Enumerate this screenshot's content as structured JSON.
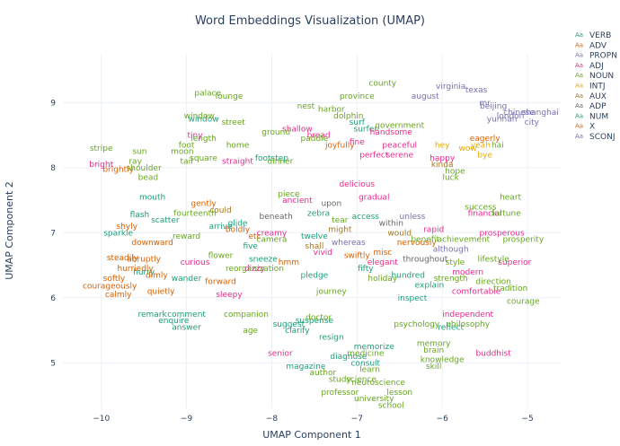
{
  "chart_data": {
    "type": "scatter",
    "title": "Word Embeddings Visualization (UMAP)",
    "xlabel": "UMAP Component 1",
    "ylabel": "UMAP Component 2",
    "xlim": [
      -10.45,
      -4.6
    ],
    "ylim": [
      4.3,
      9.75
    ],
    "xticks": [
      -10,
      -9,
      -8,
      -7,
      -6,
      -5
    ],
    "yticks": [
      5,
      6,
      7,
      8,
      9
    ],
    "grid": true,
    "legend_position": "right",
    "legend_marker": "Aa",
    "series": [
      {
        "name": "VERB",
        "color": "#1b9e77",
        "points": [
          {
            "text": "mouth",
            "x": -9.4,
            "y": 7.55
          },
          {
            "text": "flash",
            "x": -9.55,
            "y": 7.28
          },
          {
            "text": "enquire",
            "x": -9.15,
            "y": 5.65
          },
          {
            "text": "answer",
            "x": -9.0,
            "y": 5.55
          },
          {
            "text": "suspense",
            "x": -7.5,
            "y": 5.65
          },
          {
            "text": "suggest",
            "x": -7.8,
            "y": 5.6
          },
          {
            "text": "zebra",
            "x": -7.45,
            "y": 7.3
          },
          {
            "text": "access",
            "x": -6.9,
            "y": 7.25
          },
          {
            "text": "surf",
            "x": -7.0,
            "y": 8.7
          },
          {
            "text": "surfer",
            "x": -6.9,
            "y": 8.6
          },
          {
            "text": "window",
            "x": -8.8,
            "y": 8.75
          },
          {
            "text": "footstep",
            "x": -8.0,
            "y": 8.15
          },
          {
            "text": "diagnose",
            "x": -7.1,
            "y": 5.1
          },
          {
            "text": "magazine",
            "x": -7.6,
            "y": 4.95
          },
          {
            "text": "resign",
            "x": -7.3,
            "y": 5.4
          },
          {
            "text": "remark",
            "x": -9.4,
            "y": 5.75
          },
          {
            "text": "comment",
            "x": -9.0,
            "y": 5.75
          },
          {
            "text": "sparkle",
            "x": -9.8,
            "y": 7.0
          },
          {
            "text": "clarify",
            "x": -7.7,
            "y": 5.5
          },
          {
            "text": "consult",
            "x": -6.9,
            "y": 5.0
          },
          {
            "text": "wander",
            "x": -9.0,
            "y": 6.3
          },
          {
            "text": "hurry",
            "x": -9.5,
            "y": 6.4
          },
          {
            "text": "scatter",
            "x": -9.25,
            "y": 7.2
          },
          {
            "text": "glide",
            "x": -8.4,
            "y": 7.15
          },
          {
            "text": "pledge",
            "x": -7.5,
            "y": 6.35
          },
          {
            "text": "inspect",
            "x": -6.35,
            "y": 6.0
          },
          {
            "text": "reflect",
            "x": -5.9,
            "y": 5.55
          },
          {
            "text": "memorize",
            "x": -6.8,
            "y": 5.25
          },
          {
            "text": "explain",
            "x": -6.15,
            "y": 6.2
          },
          {
            "text": "arrive",
            "x": -8.6,
            "y": 7.1
          },
          {
            "text": "sneeze",
            "x": -8.1,
            "y": 6.6
          }
        ]
      },
      {
        "name": "ADV",
        "color": "#d95f02",
        "points": [
          {
            "text": "steadily",
            "x": -9.75,
            "y": 6.62
          },
          {
            "text": "downward",
            "x": -9.4,
            "y": 6.85
          },
          {
            "text": "dimly",
            "x": -9.35,
            "y": 6.35
          },
          {
            "text": "courageously",
            "x": -9.9,
            "y": 6.18
          },
          {
            "text": "calmly",
            "x": -9.8,
            "y": 6.05
          },
          {
            "text": "brightly",
            "x": -9.8,
            "y": 7.98
          },
          {
            "text": "hurriedly",
            "x": -9.6,
            "y": 6.45
          },
          {
            "text": "softly",
            "x": -9.85,
            "y": 6.3
          },
          {
            "text": "abruptly",
            "x": -9.5,
            "y": 6.6
          },
          {
            "text": "eagerly",
            "x": -5.5,
            "y": 8.45
          },
          {
            "text": "joyfully",
            "x": -7.2,
            "y": 8.35
          },
          {
            "text": "quietly",
            "x": -9.3,
            "y": 6.1
          },
          {
            "text": "forward",
            "x": -8.6,
            "y": 6.25
          },
          {
            "text": "shyly",
            "x": -9.7,
            "y": 7.1
          },
          {
            "text": "boldly",
            "x": -8.4,
            "y": 7.05
          },
          {
            "text": "swiftly",
            "x": -7.0,
            "y": 6.65
          },
          {
            "text": "nervously",
            "x": -6.3,
            "y": 6.85
          },
          {
            "text": "gently",
            "x": -8.8,
            "y": 7.45
          }
        ]
      },
      {
        "name": "PROPN",
        "color": "#7570b3",
        "points": [
          {
            "text": "virginia",
            "x": -5.9,
            "y": 9.25
          },
          {
            "text": "august",
            "x": -6.2,
            "y": 9.1
          },
          {
            "text": "beijing",
            "x": -5.4,
            "y": 8.95
          },
          {
            "text": "mr",
            "x": -5.5,
            "y": 9.0
          },
          {
            "text": "yunnan",
            "x": -5.3,
            "y": 8.75
          },
          {
            "text": "chinese",
            "x": -5.1,
            "y": 8.85
          },
          {
            "text": "shanghai",
            "x": -4.85,
            "y": 8.85
          },
          {
            "text": "city",
            "x": -4.95,
            "y": 8.7
          },
          {
            "text": "texas",
            "x": -5.6,
            "y": 9.2
          },
          {
            "text": "london",
            "x": -5.2,
            "y": 8.8
          }
        ]
      },
      {
        "name": "ADJ",
        "color": "#e7298a",
        "points": [
          {
            "text": "tiny",
            "x": -8.9,
            "y": 8.5
          },
          {
            "text": "straight",
            "x": -8.4,
            "y": 8.1
          },
          {
            "text": "shallow",
            "x": -7.7,
            "y": 8.6
          },
          {
            "text": "handsome",
            "x": -6.6,
            "y": 8.55
          },
          {
            "text": "bread",
            "x": -7.45,
            "y": 8.5
          },
          {
            "text": "senior",
            "x": -7.9,
            "y": 5.15
          },
          {
            "text": "buddhist",
            "x": -5.4,
            "y": 5.15
          },
          {
            "text": "fine",
            "x": -7.0,
            "y": 8.4
          },
          {
            "text": "perfect",
            "x": -6.8,
            "y": 8.2
          },
          {
            "text": "serene",
            "x": -6.5,
            "y": 8.2
          },
          {
            "text": "gradual",
            "x": -6.8,
            "y": 7.55
          },
          {
            "text": "bright",
            "x": -10.0,
            "y": 8.05
          },
          {
            "text": "financial",
            "x": -5.5,
            "y": 7.3
          },
          {
            "text": "prosperous",
            "x": -5.3,
            "y": 7.0
          },
          {
            "text": "modern",
            "x": -5.7,
            "y": 6.4
          },
          {
            "text": "comfortable",
            "x": -5.6,
            "y": 6.1
          },
          {
            "text": "happy",
            "x": -6.0,
            "y": 8.15
          },
          {
            "text": "peaceful",
            "x": -6.5,
            "y": 8.35
          },
          {
            "text": "creamy",
            "x": -8.0,
            "y": 7.0
          },
          {
            "text": "vivid",
            "x": -7.4,
            "y": 6.7
          },
          {
            "text": "delicious",
            "x": -7.0,
            "y": 7.75
          },
          {
            "text": "dizzy",
            "x": -8.2,
            "y": 6.45
          },
          {
            "text": "sleepy",
            "x": -8.5,
            "y": 6.05
          },
          {
            "text": "curious",
            "x": -8.9,
            "y": 6.55
          },
          {
            "text": "elegant",
            "x": -6.7,
            "y": 6.55
          },
          {
            "text": "independent",
            "x": -5.7,
            "y": 5.75
          },
          {
            "text": "ancient",
            "x": -7.7,
            "y": 7.5
          },
          {
            "text": "rapid",
            "x": -6.1,
            "y": 7.05
          },
          {
            "text": "superior",
            "x": -5.15,
            "y": 6.55
          }
        ]
      },
      {
        "name": "NOUN",
        "color": "#66a61e",
        "points": [
          {
            "text": "palace",
            "x": -8.75,
            "y": 9.15
          },
          {
            "text": "lounge",
            "x": -8.5,
            "y": 9.1
          },
          {
            "text": "county",
            "x": -6.7,
            "y": 9.3
          },
          {
            "text": "province",
            "x": -7.0,
            "y": 9.1
          },
          {
            "text": "government",
            "x": -6.5,
            "y": 8.65
          },
          {
            "text": "sun",
            "x": -9.55,
            "y": 8.25
          },
          {
            "text": "stripe",
            "x": -10.0,
            "y": 8.3
          },
          {
            "text": "ray",
            "x": -9.6,
            "y": 8.1
          },
          {
            "text": "shoulder",
            "x": -9.5,
            "y": 8.0
          },
          {
            "text": "bead",
            "x": -9.45,
            "y": 7.85
          },
          {
            "text": "foot",
            "x": -9.0,
            "y": 8.35
          },
          {
            "text": "moon",
            "x": -9.05,
            "y": 8.25
          },
          {
            "text": "tail",
            "x": -9.0,
            "y": 8.1
          },
          {
            "text": "dolphin",
            "x": -7.1,
            "y": 8.8
          },
          {
            "text": "harbor",
            "x": -7.3,
            "y": 8.9
          },
          {
            "text": "nest",
            "x": -7.6,
            "y": 8.95
          },
          {
            "text": "ground",
            "x": -7.95,
            "y": 8.55
          },
          {
            "text": "street",
            "x": -8.45,
            "y": 8.7
          },
          {
            "text": "home",
            "x": -8.4,
            "y": 8.35
          },
          {
            "text": "paddle",
            "x": -7.5,
            "y": 8.45
          },
          {
            "text": "piece",
            "x": -7.8,
            "y": 7.6
          },
          {
            "text": "fourteenth",
            "x": -8.9,
            "y": 7.3
          },
          {
            "text": "reorganization",
            "x": -8.2,
            "y": 6.45
          },
          {
            "text": "age",
            "x": -8.25,
            "y": 5.5
          },
          {
            "text": "companion",
            "x": -8.3,
            "y": 5.75
          },
          {
            "text": "doctor",
            "x": -7.45,
            "y": 5.7
          },
          {
            "text": "medicine",
            "x": -6.9,
            "y": 5.15
          },
          {
            "text": "knowledge",
            "x": -6.0,
            "y": 5.05
          },
          {
            "text": "skill",
            "x": -6.1,
            "y": 4.95
          },
          {
            "text": "science",
            "x": -6.95,
            "y": 4.75
          },
          {
            "text": "neuroscience",
            "x": -6.75,
            "y": 4.7
          },
          {
            "text": "professor",
            "x": -7.2,
            "y": 4.55
          },
          {
            "text": "lesson",
            "x": -6.5,
            "y": 4.55
          },
          {
            "text": "university",
            "x": -6.8,
            "y": 4.45
          },
          {
            "text": "school",
            "x": -6.6,
            "y": 4.35
          },
          {
            "text": "author",
            "x": -7.4,
            "y": 4.85
          },
          {
            "text": "learn",
            "x": -6.85,
            "y": 4.9
          },
          {
            "text": "study",
            "x": -7.2,
            "y": 4.75
          },
          {
            "text": "success",
            "x": -5.55,
            "y": 7.4
          },
          {
            "text": "fortune",
            "x": -5.25,
            "y": 7.3
          },
          {
            "text": "prosperity",
            "x": -5.05,
            "y": 6.9
          },
          {
            "text": "heart",
            "x": -5.2,
            "y": 7.55
          },
          {
            "text": "courage",
            "x": -5.05,
            "y": 5.95
          },
          {
            "text": "lifestyle",
            "x": -5.4,
            "y": 6.6
          },
          {
            "text": "style",
            "x": -5.85,
            "y": 6.55
          },
          {
            "text": "benefit",
            "x": -6.2,
            "y": 6.9
          },
          {
            "text": "achievement",
            "x": -5.75,
            "y": 6.9
          },
          {
            "text": "brain",
            "x": -6.1,
            "y": 5.2
          },
          {
            "text": "psychology",
            "x": -6.3,
            "y": 5.6
          },
          {
            "text": "philosophy",
            "x": -5.7,
            "y": 5.6
          },
          {
            "text": "tradition",
            "x": -5.2,
            "y": 6.15
          },
          {
            "text": "direction",
            "x": -5.4,
            "y": 6.25
          },
          {
            "text": "hai",
            "x": -5.35,
            "y": 8.35
          },
          {
            "text": "luck",
            "x": -5.9,
            "y": 7.85
          },
          {
            "text": "hope",
            "x": -5.85,
            "y": 7.95
          },
          {
            "text": "window",
            "x": -8.85,
            "y": 8.8
          },
          {
            "text": "square",
            "x": -8.8,
            "y": 8.15
          },
          {
            "text": "length",
            "x": -8.8,
            "y": 8.45
          },
          {
            "text": "dinner",
            "x": -7.9,
            "y": 8.1
          },
          {
            "text": "camera",
            "x": -8.0,
            "y": 6.9
          },
          {
            "text": "memory",
            "x": -6.1,
            "y": 5.3
          },
          {
            "text": "tear",
            "x": -7.2,
            "y": 7.2
          },
          {
            "text": "flower",
            "x": -8.6,
            "y": 6.65
          },
          {
            "text": "journey",
            "x": -7.3,
            "y": 6.1
          },
          {
            "text": "holiday",
            "x": -6.7,
            "y": 6.3
          },
          {
            "text": "reward",
            "x": -9.0,
            "y": 6.95
          },
          {
            "text": "strength",
            "x": -5.9,
            "y": 6.3
          }
        ]
      },
      {
        "name": "INTJ",
        "color": "#e6ab02",
        "points": [
          {
            "text": "yeah",
            "x": -5.55,
            "y": 8.35
          },
          {
            "text": "bye",
            "x": -5.5,
            "y": 8.2
          },
          {
            "text": "wow",
            "x": -5.7,
            "y": 8.3
          },
          {
            "text": "hey",
            "x": -6.0,
            "y": 8.35
          }
        ]
      },
      {
        "name": "AUX",
        "color": "#a6761d",
        "points": [
          {
            "text": "kinda",
            "x": -6.0,
            "y": 8.05
          },
          {
            "text": "might",
            "x": -7.2,
            "y": 7.05
          },
          {
            "text": "would",
            "x": -6.5,
            "y": 7.0
          },
          {
            "text": "shall",
            "x": -7.5,
            "y": 6.8
          },
          {
            "text": "could",
            "x": -8.6,
            "y": 7.35
          }
        ]
      },
      {
        "name": "ADP",
        "color": "#666666",
        "points": [
          {
            "text": "upon",
            "x": -7.3,
            "y": 7.45
          },
          {
            "text": "beneath",
            "x": -7.95,
            "y": 7.25
          },
          {
            "text": "within",
            "x": -6.6,
            "y": 7.15
          },
          {
            "text": "throughout",
            "x": -6.2,
            "y": 6.6
          }
        ]
      },
      {
        "name": "NUM",
        "color": "#1b9e77",
        "points": [
          {
            "text": "five",
            "x": -8.25,
            "y": 6.8
          },
          {
            "text": "twelve",
            "x": -7.5,
            "y": 6.95
          },
          {
            "text": "fifty",
            "x": -6.9,
            "y": 6.45
          },
          {
            "text": "hundred",
            "x": -6.4,
            "y": 6.35
          }
        ]
      },
      {
        "name": "X",
        "color": "#d95f02",
        "points": [
          {
            "text": "etc",
            "x": -8.2,
            "y": 6.95
          },
          {
            "text": "misc",
            "x": -6.7,
            "y": 6.7
          },
          {
            "text": "hmm",
            "x": -7.8,
            "y": 6.55
          }
        ]
      },
      {
        "name": "SCONJ",
        "color": "#7570b3",
        "points": [
          {
            "text": "whereas",
            "x": -7.1,
            "y": 6.85
          },
          {
            "text": "although",
            "x": -5.9,
            "y": 6.75
          },
          {
            "text": "unless",
            "x": -6.35,
            "y": 7.25
          }
        ]
      }
    ]
  }
}
